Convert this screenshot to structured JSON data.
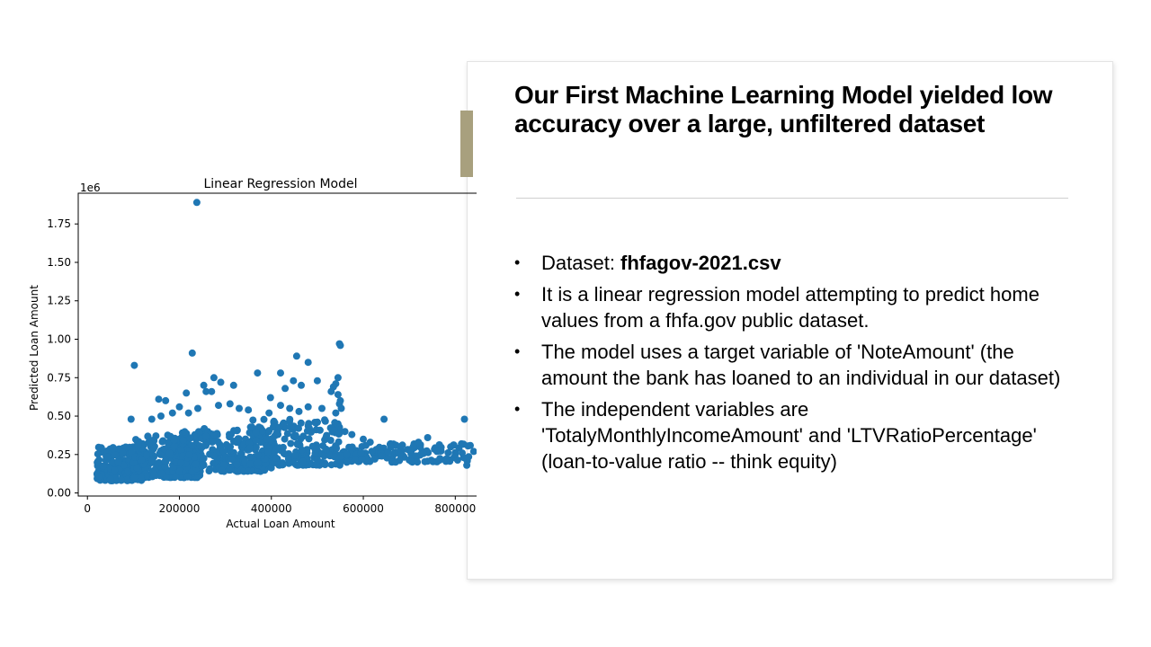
{
  "slide": {
    "title": "Our First Machine Learning Model yielded low accuracy over a large, unfiltered dataset",
    "accent_color": "#a8a07e",
    "bullets": [
      {
        "prefix": "Dataset: ",
        "bold": "fhfagov-2021.csv",
        "suffix": ""
      },
      {
        "prefix": "It is a linear regression model attempting to predict home values from a fhfa.gov public dataset.",
        "bold": "",
        "suffix": ""
      },
      {
        "prefix": "The model uses a target variable of 'NoteAmount' (the amount the bank has loaned to an individual in our dataset)",
        "bold": "",
        "suffix": ""
      },
      {
        "prefix": "The independent variables are 'TotalyMonthlyIncomeAmount'  and 'LTVRatioPercentage' (loan-to-value ratio -- think equity)",
        "bold": "",
        "suffix": ""
      }
    ]
  },
  "chart_data": {
    "type": "scatter",
    "title": "Linear Regression Model",
    "xlabel": "Actual Loan Amount",
    "ylabel": "Predicted Loan Amount",
    "y_multiplier_label": "1e6",
    "xlim": [
      -20000,
      860000
    ],
    "ylim": [
      -0.02,
      1.95
    ],
    "x_ticks": [
      0,
      200000,
      400000,
      600000,
      800000
    ],
    "x_tick_labels": [
      "0",
      "200000",
      "400000",
      "600000",
      "800000"
    ],
    "y_ticks": [
      0.0,
      0.25,
      0.5,
      0.75,
      1.0,
      1.25,
      1.5,
      1.75
    ],
    "y_tick_labels": [
      "0.00",
      "0.25",
      "0.50",
      "0.75",
      "1.00",
      "1.25",
      "1.50",
      "1.75"
    ],
    "grid": false,
    "color": "#1f77b4",
    "points": [
      [
        238000,
        1.89
      ],
      [
        228000,
        0.91
      ],
      [
        102000,
        0.83
      ],
      [
        548000,
        0.97
      ],
      [
        550000,
        0.96
      ],
      [
        455000,
        0.89
      ],
      [
        480000,
        0.85
      ],
      [
        448000,
        0.73
      ],
      [
        420000,
        0.78
      ],
      [
        370000,
        0.78
      ],
      [
        275000,
        0.75
      ],
      [
        290000,
        0.72
      ],
      [
        253000,
        0.7
      ],
      [
        318000,
        0.7
      ],
      [
        258000,
        0.66
      ],
      [
        270000,
        0.66
      ],
      [
        215000,
        0.65
      ],
      [
        170000,
        0.6
      ],
      [
        155000,
        0.61
      ],
      [
        398000,
        0.62
      ],
      [
        430000,
        0.68
      ],
      [
        465000,
        0.7
      ],
      [
        500000,
        0.73
      ],
      [
        545000,
        0.75
      ],
      [
        540000,
        0.71
      ],
      [
        535000,
        0.69
      ],
      [
        530000,
        0.66
      ],
      [
        545000,
        0.64
      ],
      [
        550000,
        0.6
      ],
      [
        548000,
        0.58
      ],
      [
        552000,
        0.55
      ],
      [
        540000,
        0.52
      ],
      [
        510000,
        0.55
      ],
      [
        480000,
        0.56
      ],
      [
        460000,
        0.53
      ],
      [
        440000,
        0.55
      ],
      [
        420000,
        0.57
      ],
      [
        395000,
        0.52
      ],
      [
        350000,
        0.54
      ],
      [
        330000,
        0.55
      ],
      [
        310000,
        0.58
      ],
      [
        285000,
        0.57
      ],
      [
        240000,
        0.55
      ],
      [
        220000,
        0.52
      ],
      [
        200000,
        0.56
      ],
      [
        185000,
        0.52
      ],
      [
        160000,
        0.5
      ],
      [
        140000,
        0.48
      ],
      [
        95000,
        0.48
      ],
      [
        645000,
        0.48
      ],
      [
        820000,
        0.48
      ],
      [
        740000,
        0.36
      ],
      [
        720000,
        0.33
      ],
      [
        600000,
        0.35
      ],
      [
        560000,
        0.4
      ],
      [
        575000,
        0.38
      ],
      [
        615000,
        0.33
      ],
      [
        660000,
        0.3
      ],
      [
        700000,
        0.28
      ],
      [
        760000,
        0.27
      ],
      [
        790000,
        0.3
      ],
      [
        815000,
        0.26
      ],
      [
        825000,
        0.18
      ],
      [
        840000,
        0.27
      ],
      [
        780000,
        0.22
      ],
      [
        800000,
        0.25
      ],
      [
        680000,
        0.25
      ],
      [
        640000,
        0.24
      ],
      [
        625000,
        0.22
      ],
      [
        595000,
        0.26
      ]
    ],
    "dense_bands": [
      {
        "x0": 20000,
        "x1": 120000,
        "y0": 0.08,
        "y1": 0.3,
        "count": 220
      },
      {
        "x0": 100000,
        "x1": 250000,
        "y0": 0.1,
        "y1": 0.38,
        "count": 260
      },
      {
        "x0": 200000,
        "x1": 400000,
        "y0": 0.14,
        "y1": 0.42,
        "count": 260
      },
      {
        "x0": 350000,
        "x1": 552000,
        "y0": 0.18,
        "y1": 0.48,
        "count": 220
      },
      {
        "x0": 552000,
        "x1": 760000,
        "y0": 0.2,
        "y1": 0.32,
        "count": 110
      },
      {
        "x0": 760000,
        "x1": 840000,
        "y0": 0.2,
        "y1": 0.32,
        "count": 25
      }
    ]
  }
}
